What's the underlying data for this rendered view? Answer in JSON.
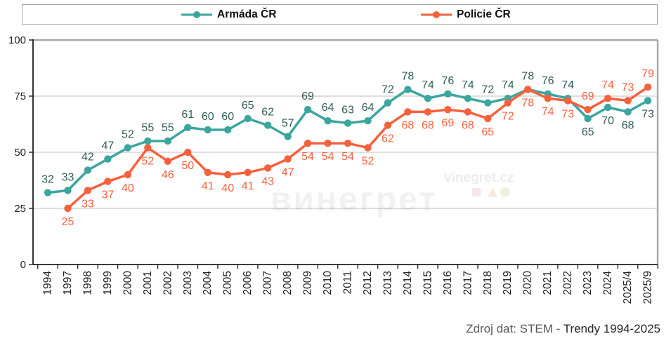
{
  "legend": {
    "items": [
      {
        "label": "Armáda ČR",
        "color": "#3BA69E"
      },
      {
        "label": "Policie ČR",
        "color": "#F4613D"
      }
    ]
  },
  "chart_data": {
    "type": "line",
    "title": "",
    "categories": [
      "1994",
      "1997",
      "1998",
      "1999",
      "2000",
      "2001",
      "2002",
      "2003",
      "2004",
      "2005",
      "2006",
      "2007",
      "2008",
      "2009",
      "2010",
      "2011",
      "2012",
      "2013",
      "2014",
      "2015",
      "2016",
      "2017",
      "2018",
      "2019",
      "2020",
      "2021",
      "2022",
      "2023",
      "2024",
      "2025/4",
      "2025/9"
    ],
    "series": [
      {
        "name": "Armáda ČR",
        "color": "#3BA69E",
        "label_color": "#2F5B58",
        "values": [
          32,
          33,
          42,
          47,
          52,
          55,
          55,
          61,
          60,
          60,
          65,
          62,
          57,
          69,
          64,
          63,
          64,
          72,
          78,
          74,
          76,
          74,
          72,
          74,
          78,
          76,
          74,
          65,
          70,
          68,
          73
        ]
      },
      {
        "name": "Policie ČR",
        "color": "#F4613D",
        "label_color": "#F4613D",
        "values": [
          null,
          25,
          33,
          37,
          40,
          52,
          46,
          50,
          41,
          40,
          41,
          43,
          47,
          54,
          54,
          54,
          52,
          62,
          68,
          68,
          69,
          68,
          65,
          72,
          78,
          74,
          73,
          69,
          74,
          73,
          79
        ]
      }
    ],
    "ylim": [
      0,
      100
    ],
    "yticks": [
      0,
      25,
      50,
      75,
      100
    ],
    "grid": true,
    "data_labels": true,
    "legend_position": "top"
  },
  "watermark": {
    "title": "винегрет",
    "site": "vinegret.cz"
  },
  "source": {
    "prefix": "Zdroj dat: STEM - ",
    "highlight": "Trendy 1994-2025"
  }
}
